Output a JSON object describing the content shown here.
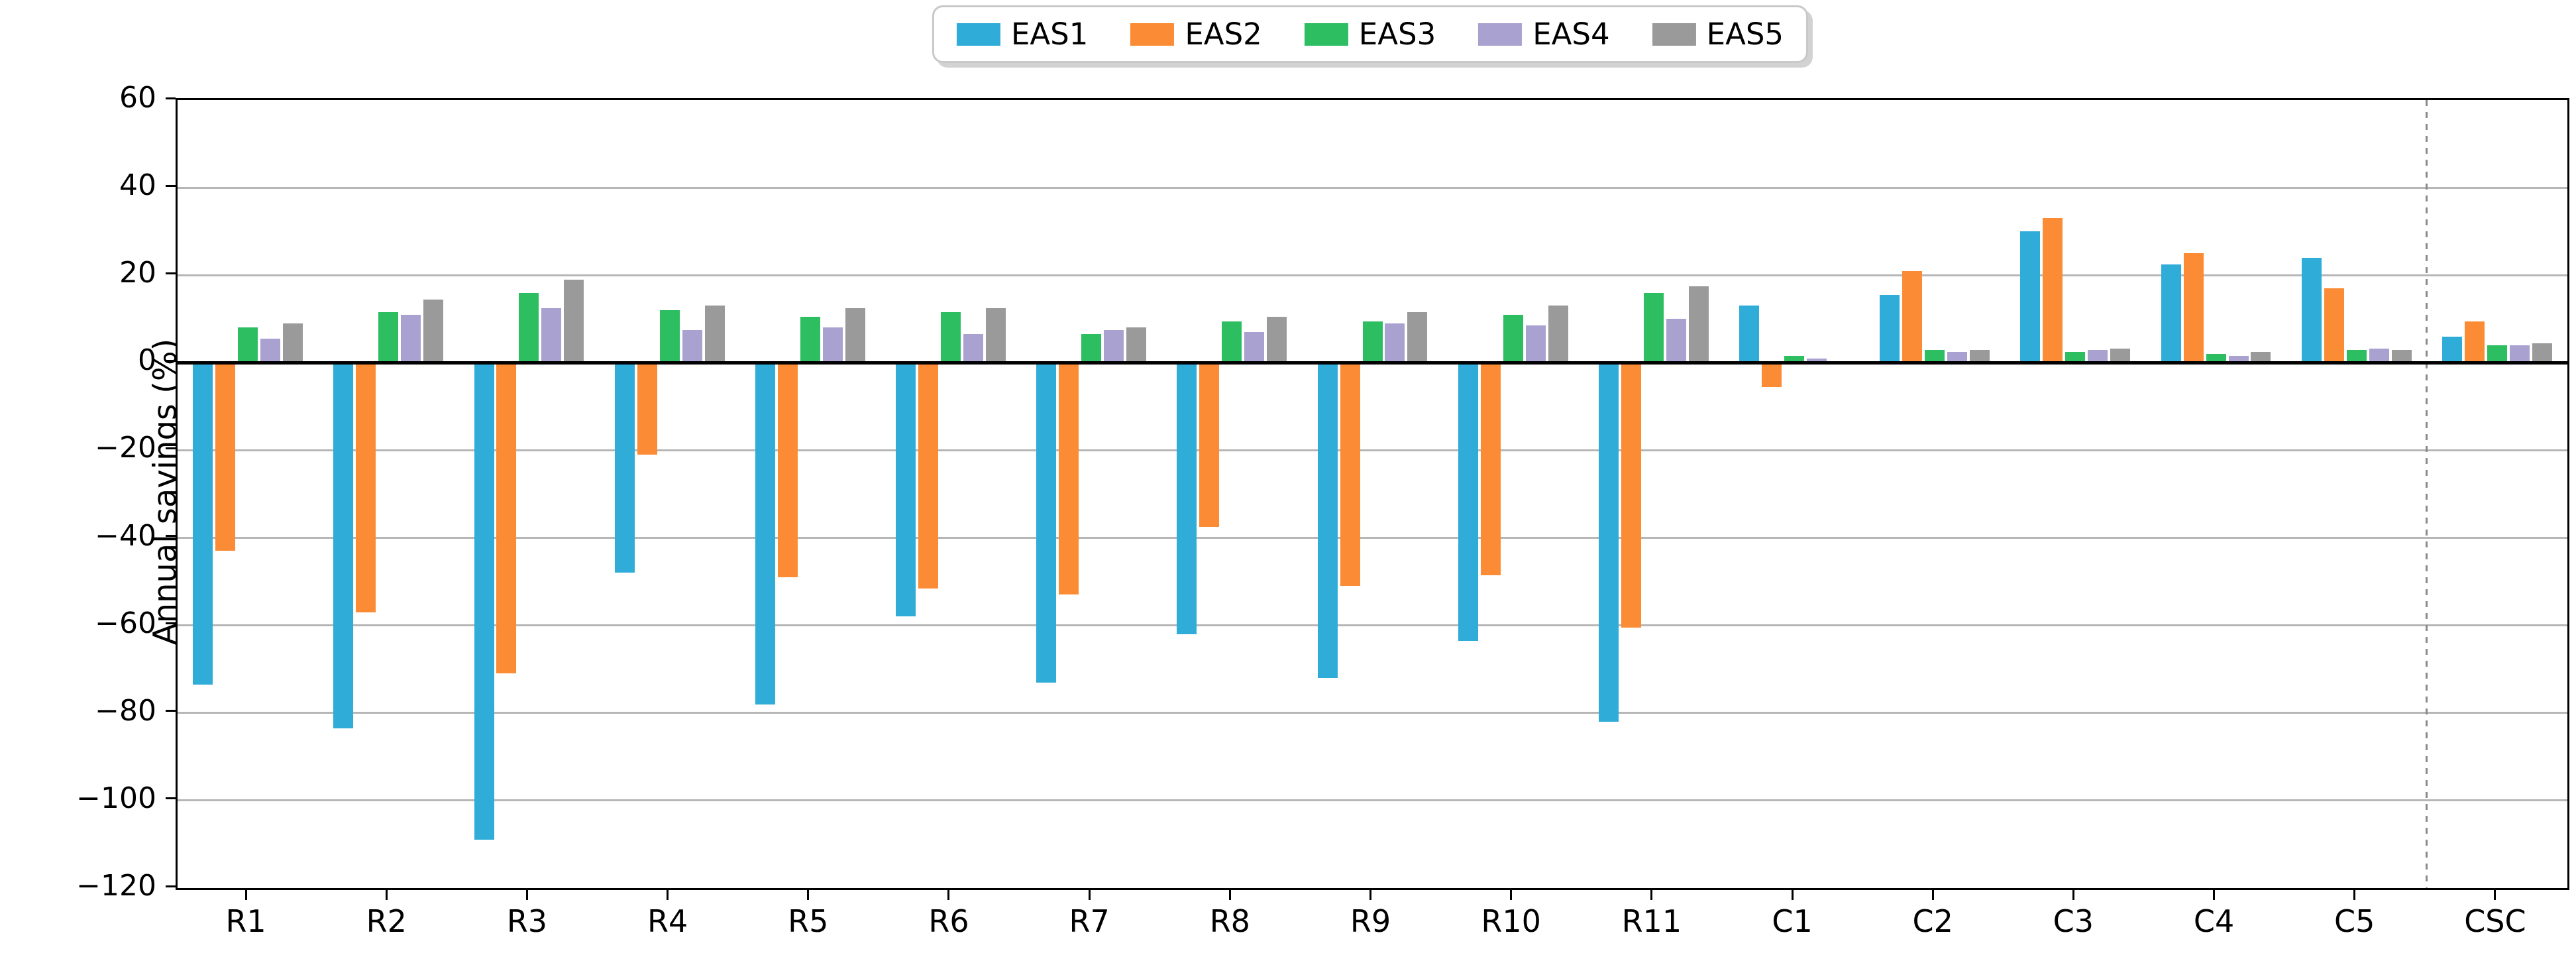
{
  "figure": {
    "ylabel": "Annual savings (%)"
  },
  "chart_data": {
    "type": "bar",
    "title": "",
    "xlabel": "",
    "ylabel": "Annual savings (%)",
    "ylim": [
      -120,
      60
    ],
    "ytick_values": [
      60,
      40,
      20,
      0,
      -20,
      -40,
      -60,
      -80,
      -100,
      -120
    ],
    "ytick_labels": [
      "60",
      "40",
      "20",
      "0",
      "−20",
      "−40",
      "−60",
      "−80",
      "−100",
      "−120"
    ],
    "gridline_values": [
      40,
      20,
      -20,
      -40,
      -60,
      -80,
      -100
    ],
    "grid": true,
    "legend_position": "top-center",
    "separator_before_category": "CSC",
    "categories": [
      "R1",
      "R2",
      "R3",
      "R4",
      "R5",
      "R6",
      "R7",
      "R8",
      "R9",
      "R10",
      "R11",
      "C1",
      "C2",
      "C3",
      "C4",
      "C5",
      "CSC"
    ],
    "series": [
      {
        "name": "EAS1",
        "color": "#30ACD8",
        "values": [
          -73.5,
          -83.5,
          -109,
          -48,
          -78,
          -58,
          -73,
          -62,
          -72,
          -63.5,
          -82,
          13,
          15.5,
          30,
          22.5,
          24,
          6
        ]
      },
      {
        "name": "EAS2",
        "color": "#FB8C35",
        "values": [
          -43,
          -57,
          -71,
          -21,
          -49,
          -51.5,
          -53,
          -37.5,
          -51,
          -48.5,
          -60.5,
          -5.5,
          21,
          33,
          25,
          17,
          9.5
        ]
      },
      {
        "name": "EAS3",
        "color": "#2DBE62",
        "values": [
          8,
          11.5,
          16,
          12,
          10.5,
          11.5,
          6.5,
          9.5,
          9.5,
          11,
          16,
          1.5,
          3,
          2.5,
          2,
          3,
          4
        ]
      },
      {
        "name": "EAS4",
        "color": "#A9A2D0",
        "values": [
          5.5,
          11,
          12.5,
          7.5,
          8,
          6.5,
          7.5,
          7,
          9,
          8.5,
          10,
          1,
          2.5,
          3,
          1.5,
          3.2,
          4
        ]
      },
      {
        "name": "EAS5",
        "color": "#9A9A9A",
        "values": [
          9,
          14.5,
          19,
          13,
          12.5,
          12.5,
          8,
          10.5,
          11.5,
          13,
          17.5,
          0,
          3,
          3.3,
          2.5,
          3,
          4.5
        ]
      }
    ],
    "colors": {
      "grid": "#b6b6b6",
      "zero_line": "#000000",
      "separator": "#8a8a8a",
      "legend_border": "#c9c9c9"
    }
  }
}
